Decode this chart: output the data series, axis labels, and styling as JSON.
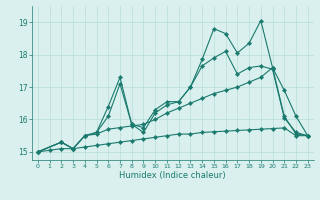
{
  "xlabel": "Humidex (Indice chaleur)",
  "xlim": [
    -0.5,
    23.5
  ],
  "ylim": [
    14.75,
    19.5
  ],
  "xticks": [
    0,
    1,
    2,
    3,
    4,
    5,
    6,
    7,
    8,
    9,
    10,
    11,
    12,
    13,
    14,
    15,
    16,
    17,
    18,
    19,
    20,
    21,
    22,
    23
  ],
  "yticks": [
    15,
    16,
    17,
    18,
    19
  ],
  "background_color": "#d9f0ee",
  "line_color": "#1a7a6e",
  "grid_color": "#b8dcd8",
  "lines": [
    {
      "x": [
        0,
        2,
        3,
        4,
        5,
        6,
        7,
        8,
        9,
        10,
        11,
        12,
        13,
        14,
        15,
        16,
        17,
        18,
        19,
        20,
        21,
        22,
        23
      ],
      "y": [
        15.0,
        15.3,
        15.1,
        15.5,
        15.6,
        16.4,
        17.3,
        15.85,
        15.75,
        16.3,
        16.55,
        16.55,
        17.0,
        17.85,
        18.8,
        18.65,
        18.05,
        18.35,
        19.05,
        17.6,
        16.9,
        16.1,
        15.5
      ]
    },
    {
      "x": [
        0,
        2,
        3,
        4,
        5,
        6,
        7,
        8,
        9,
        10,
        11,
        12,
        13,
        14,
        15,
        16,
        17,
        18,
        19,
        20,
        21,
        22,
        23
      ],
      "y": [
        15.0,
        15.3,
        15.1,
        15.5,
        15.6,
        16.1,
        17.1,
        15.85,
        15.6,
        16.2,
        16.45,
        16.55,
        17.0,
        17.65,
        17.9,
        18.1,
        17.4,
        17.6,
        17.65,
        17.55,
        16.05,
        15.6,
        15.5
      ]
    },
    {
      "x": [
        0,
        1,
        2,
        3,
        4,
        5,
        6,
        7,
        8,
        9,
        10,
        11,
        12,
        13,
        14,
        15,
        16,
        17,
        18,
        19,
        20,
        21,
        22,
        23
      ],
      "y": [
        15.0,
        15.05,
        15.1,
        15.1,
        15.15,
        15.2,
        15.25,
        15.3,
        15.35,
        15.4,
        15.45,
        15.5,
        15.55,
        15.55,
        15.6,
        15.62,
        15.64,
        15.66,
        15.68,
        15.7,
        15.72,
        15.74,
        15.5,
        15.5
      ]
    },
    {
      "x": [
        0,
        2,
        3,
        4,
        5,
        6,
        7,
        8,
        9,
        10,
        11,
        12,
        13,
        14,
        15,
        16,
        17,
        18,
        19,
        20,
        21,
        22,
        23
      ],
      "y": [
        15.0,
        15.3,
        15.1,
        15.5,
        15.55,
        15.7,
        15.75,
        15.8,
        15.85,
        16.0,
        16.2,
        16.35,
        16.5,
        16.65,
        16.8,
        16.9,
        17.0,
        17.15,
        17.3,
        17.6,
        16.1,
        15.55,
        15.5
      ]
    }
  ]
}
